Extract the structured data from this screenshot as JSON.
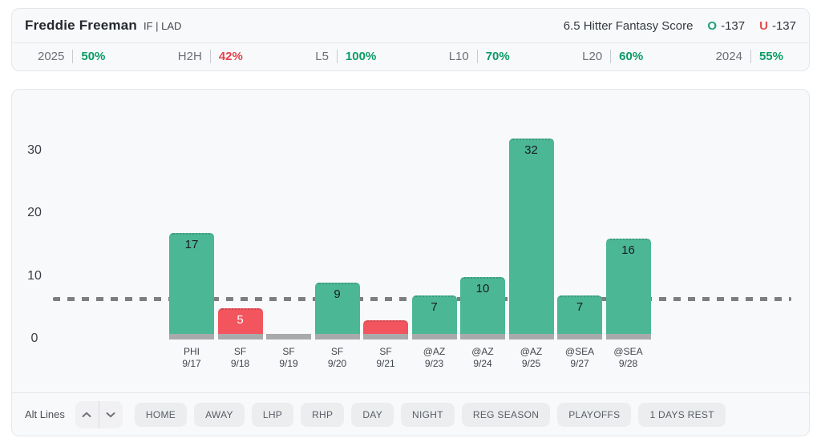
{
  "header": {
    "player_name": "Freddie Freeman",
    "player_position": "IF | LAD",
    "line_label": "6.5 Hitter Fantasy Score",
    "over": {
      "label": "O",
      "odds": "-137"
    },
    "under": {
      "label": "U",
      "odds": "-137"
    }
  },
  "stats": {
    "items": [
      {
        "label": "2025",
        "value": "50%",
        "tone": "positive"
      },
      {
        "label": "H2H",
        "value": "42%",
        "tone": "negative"
      },
      {
        "label": "L5",
        "value": "100%",
        "tone": "positive"
      },
      {
        "label": "L10",
        "value": "70%",
        "tone": "positive"
      },
      {
        "label": "L20",
        "value": "60%",
        "tone": "positive"
      },
      {
        "label": "2024",
        "value": "55%",
        "tone": "positive"
      }
    ]
  },
  "chart_data": {
    "type": "bar",
    "title": "Hitter Fantasy Score by game",
    "x": [
      {
        "team": "PHI",
        "date": "9/17"
      },
      {
        "team": "SF",
        "date": "9/18"
      },
      {
        "team": "SF",
        "date": "9/19"
      },
      {
        "team": "SF",
        "date": "9/20"
      },
      {
        "team": "SF",
        "date": "9/21"
      },
      {
        "team": "@AZ",
        "date": "9/23"
      },
      {
        "team": "@AZ",
        "date": "9/24"
      },
      {
        "team": "@AZ",
        "date": "9/25"
      },
      {
        "team": "@SEA",
        "date": "9/27"
      },
      {
        "team": "@SEA",
        "date": "9/28"
      }
    ],
    "values": [
      17,
      5,
      0,
      9,
      3,
      7,
      10,
      32,
      7,
      16
    ],
    "bar_labels": [
      "17",
      "5",
      "",
      "9",
      "",
      "7",
      "10",
      "32",
      "7",
      "16"
    ],
    "results": [
      "over",
      "under",
      "none",
      "over",
      "under",
      "over",
      "over",
      "over",
      "over",
      "over"
    ],
    "line_value": 6.5,
    "yticks": [
      0,
      10,
      20,
      30
    ],
    "ylim": [
      0,
      36
    ],
    "xlabel": "",
    "ylabel": ""
  },
  "filters": {
    "alt_lines_label": "Alt Lines",
    "buttons": [
      "HOME",
      "AWAY",
      "LHP",
      "RHP",
      "DAY",
      "NIGHT",
      "REG SEASON",
      "PLAYOFFS",
      "1 DAYS REST"
    ]
  },
  "colors": {
    "over_green": "#4BB795",
    "under_red": "#F2555E",
    "push_gray": "#A9AAAC",
    "positive_text": "#0A9B66",
    "negative_text": "#E8424C",
    "over_letter": "#1EA173",
    "under_letter": "#E2504E",
    "target_line": "#7C7E82",
    "bar_label_dark": "#191D23",
    "bar_label_light": "#FFFFFF"
  }
}
